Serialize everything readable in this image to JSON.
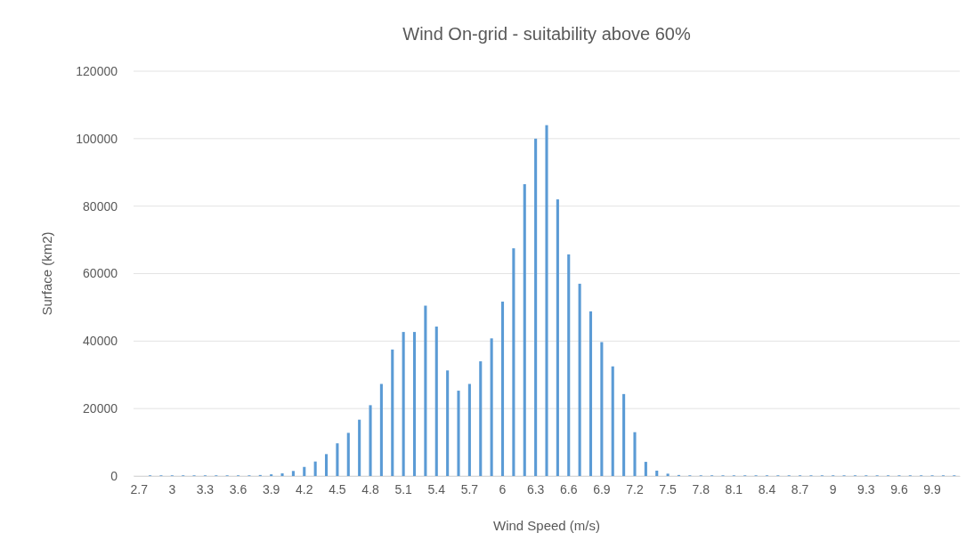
{
  "chart_data": {
    "type": "bar",
    "title": "Wind On-grid - suitability above 60%",
    "xlabel": "Wind Speed (m/s)",
    "ylabel": "Surface (km2)",
    "categories": [
      "2.7",
      null,
      null,
      "3",
      null,
      null,
      "3.3",
      null,
      null,
      "3.6",
      null,
      null,
      "3.9",
      null,
      null,
      "4.2",
      null,
      null,
      "4.5",
      null,
      null,
      "4.8",
      null,
      null,
      "5.1",
      null,
      null,
      "5.4",
      null,
      null,
      "5.7",
      null,
      null,
      "6",
      null,
      null,
      "6.3",
      null,
      null,
      "6.6",
      null,
      null,
      "6.9",
      null,
      null,
      "7.2",
      null,
      null,
      "7.5",
      null,
      null,
      "7.8",
      null,
      null,
      "8.1",
      null,
      null,
      "8.4",
      null,
      null,
      "8.7",
      null,
      null,
      "9",
      null,
      null,
      "9.3",
      null,
      null,
      "9.6",
      null,
      null,
      "9.9",
      null,
      null
    ],
    "values": [
      0,
      200,
      200,
      200,
      200,
      200,
      200,
      200,
      200,
      200,
      200,
      300,
      500,
      800,
      1500,
      2700,
      4300,
      6500,
      9700,
      12800,
      16700,
      21000,
      27300,
      37500,
      42700,
      42700,
      50500,
      44300,
      31300,
      25300,
      27300,
      34000,
      40800,
      51700,
      67500,
      86500,
      100000,
      104000,
      82000,
      65700,
      57000,
      48800,
      39700,
      32500,
      24300,
      13000,
      4200,
      1600,
      700,
      300,
      200,
      200,
      200,
      200,
      200,
      200,
      200,
      200,
      200,
      200,
      200,
      200,
      200,
      200,
      200,
      200,
      200,
      200,
      200,
      200,
      200,
      200,
      200,
      200,
      200
    ],
    "color": "#5b9bd5",
    "ylim": [
      0,
      120000
    ],
    "yticks": [
      0,
      20000,
      40000,
      60000,
      80000,
      100000,
      120000
    ],
    "grid": "y"
  }
}
